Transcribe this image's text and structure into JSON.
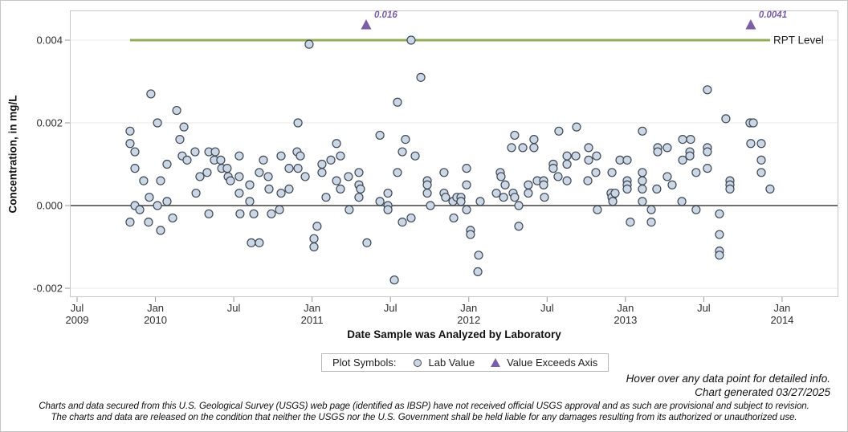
{
  "chart_data": {
    "type": "scatter",
    "xlabel": "Date Sample was Analyzed by Laboratory",
    "ylabel": "Concentration, in mg/L",
    "x_range": [
      2009.454,
      2014.36
    ],
    "y_range": [
      -0.0022,
      0.0047
    ],
    "grid": true,
    "x_ticks": [
      {
        "x": 2009.5,
        "month": "Jul",
        "year": "2009"
      },
      {
        "x": 2010.0,
        "month": "Jan",
        "year": "2010"
      },
      {
        "x": 2010.5,
        "month": "Jul",
        "year": ""
      },
      {
        "x": 2011.0,
        "month": "Jan",
        "year": "2011"
      },
      {
        "x": 2011.5,
        "month": "Jul",
        "year": ""
      },
      {
        "x": 2012.0,
        "month": "Jan",
        "year": "2012"
      },
      {
        "x": 2012.5,
        "month": "Jul",
        "year": ""
      },
      {
        "x": 2013.0,
        "month": "Jan",
        "year": "2013"
      },
      {
        "x": 2013.5,
        "month": "Jul",
        "year": ""
      },
      {
        "x": 2014.0,
        "month": "Jan",
        "year": "2014"
      }
    ],
    "y_ticks": [
      {
        "v": 0.004,
        "label": "0.004"
      },
      {
        "v": 0.002,
        "label": "0.002"
      },
      {
        "v": 0.0,
        "label": "0.000"
      },
      {
        "v": -0.002,
        "label": "-0.002"
      }
    ],
    "rpt_level": {
      "value": 0.004,
      "label": "RPT Level",
      "start": 2009.838,
      "end": 2013.92
    },
    "zero_reference": 0,
    "exceed_points": [
      {
        "x": 2011.345,
        "label": "0.016"
      },
      {
        "x": 2013.8,
        "label": "0.0041"
      }
    ],
    "points": [
      [
        2009.838,
        0.0018
      ],
      [
        2009.838,
        0.0015
      ],
      [
        2009.838,
        -0.0004
      ],
      [
        2009.869,
        0.0013
      ],
      [
        2009.869,
        0.0009
      ],
      [
        2009.869,
        0.0
      ],
      [
        2009.9,
        -0.0001
      ],
      [
        2009.925,
        0.0006
      ],
      [
        2009.956,
        -0.0004
      ],
      [
        2009.961,
        0.0002
      ],
      [
        2009.971,
        0.0027
      ],
      [
        2010.013,
        0.002
      ],
      [
        2010.013,
        0.0
      ],
      [
        2010.033,
        0.0006
      ],
      [
        2010.033,
        -0.0006
      ],
      [
        2010.074,
        0.001
      ],
      [
        2010.074,
        0.0001
      ],
      [
        2010.11,
        -0.0003
      ],
      [
        2010.136,
        0.0023
      ],
      [
        2010.156,
        0.0016
      ],
      [
        2010.171,
        0.0012
      ],
      [
        2010.182,
        0.0019
      ],
      [
        2010.202,
        0.0011
      ],
      [
        2010.253,
        0.0013
      ],
      [
        2010.259,
        0.0003
      ],
      [
        2010.284,
        0.0007
      ],
      [
        2010.33,
        0.0008
      ],
      [
        2010.341,
        0.0013
      ],
      [
        2010.341,
        -0.0002
      ],
      [
        2010.376,
        0.0011
      ],
      [
        2010.382,
        0.0013
      ],
      [
        2010.417,
        0.0011
      ],
      [
        2010.423,
        0.0009
      ],
      [
        2010.458,
        0.0009
      ],
      [
        2010.464,
        0.0007
      ],
      [
        2010.479,
        0.0006
      ],
      [
        2010.535,
        0.0012
      ],
      [
        2010.535,
        0.0007
      ],
      [
        2010.535,
        0.0003
      ],
      [
        2010.54,
        -0.0002
      ],
      [
        2010.602,
        0.0005
      ],
      [
        2010.602,
        0.0001
      ],
      [
        2010.612,
        -0.0009
      ],
      [
        2010.628,
        -0.0002
      ],
      [
        2010.663,
        0.0008
      ],
      [
        2010.663,
        -0.0009
      ],
      [
        2010.689,
        0.0011
      ],
      [
        2010.72,
        0.0007
      ],
      [
        2010.725,
        0.0004
      ],
      [
        2010.74,
        -0.0002
      ],
      [
        2010.792,
        -0.0001
      ],
      [
        2010.802,
        0.0012
      ],
      [
        2010.802,
        0.0003
      ],
      [
        2010.853,
        0.0009
      ],
      [
        2010.853,
        0.0004
      ],
      [
        2010.904,
        0.0013
      ],
      [
        2010.91,
        0.002
      ],
      [
        2010.91,
        0.0009
      ],
      [
        2010.925,
        0.0012
      ],
      [
        2010.956,
        0.0007
      ],
      [
        2010.981,
        0.0039
      ],
      [
        2011.012,
        -0.0008
      ],
      [
        2011.012,
        -0.001
      ],
      [
        2011.032,
        -0.0005
      ],
      [
        2011.063,
        0.001
      ],
      [
        2011.063,
        0.0008
      ],
      [
        2011.089,
        0.0002
      ],
      [
        2011.12,
        0.0011
      ],
      [
        2011.156,
        0.0015
      ],
      [
        2011.156,
        0.0006
      ],
      [
        2011.181,
        0.0012
      ],
      [
        2011.181,
        0.0004
      ],
      [
        2011.232,
        0.0007
      ],
      [
        2011.237,
        -0.0001
      ],
      [
        2011.299,
        0.0008
      ],
      [
        2011.299,
        0.0005
      ],
      [
        2011.299,
        0.0002
      ],
      [
        2011.309,
        0.0004
      ],
      [
        2011.35,
        -0.0009
      ],
      [
        2011.433,
        0.0017
      ],
      [
        2011.433,
        0.0001
      ],
      [
        2011.484,
        0.0003
      ],
      [
        2011.484,
        0.0
      ],
      [
        2011.484,
        -0.0001
      ],
      [
        2011.525,
        -0.0018
      ],
      [
        2011.545,
        0.0025
      ],
      [
        2011.545,
        0.0008
      ],
      [
        2011.576,
        0.0013
      ],
      [
        2011.576,
        -0.0004
      ],
      [
        2011.596,
        0.0016
      ],
      [
        2011.632,
        0.004
      ],
      [
        2011.632,
        -0.0003
      ],
      [
        2011.658,
        0.0012
      ],
      [
        2011.694,
        0.0031
      ],
      [
        2011.735,
        0.0006
      ],
      [
        2011.735,
        0.0005
      ],
      [
        2011.735,
        0.0003
      ],
      [
        2011.755,
        0.0
      ],
      [
        2011.842,
        0.0008
      ],
      [
        2011.842,
        0.0003
      ],
      [
        2011.852,
        0.0002
      ],
      [
        2011.899,
        0.0001
      ],
      [
        2011.904,
        -0.0003
      ],
      [
        2011.924,
        0.0002
      ],
      [
        2011.95,
        0.0002
      ],
      [
        2011.95,
        0.0001
      ],
      [
        2011.986,
        0.0009
      ],
      [
        2011.986,
        0.0005
      ],
      [
        2011.986,
        -0.0001
      ],
      [
        2012.011,
        -0.0006
      ],
      [
        2012.011,
        -0.0007
      ],
      [
        2012.058,
        -0.0016
      ],
      [
        2012.063,
        -0.0012
      ],
      [
        2012.073,
        0.0001
      ],
      [
        2012.176,
        0.0003
      ],
      [
        2012.201,
        0.0008
      ],
      [
        2012.206,
        0.0007
      ],
      [
        2012.222,
        0.0002
      ],
      [
        2012.232,
        0.0005
      ],
      [
        2012.273,
        0.0014
      ],
      [
        2012.283,
        0.0003
      ],
      [
        2012.293,
        0.0017
      ],
      [
        2012.293,
        0.0002
      ],
      [
        2012.319,
        0.0
      ],
      [
        2012.319,
        -0.0005
      ],
      [
        2012.345,
        0.0014
      ],
      [
        2012.38,
        0.0005
      ],
      [
        2012.38,
        0.0003
      ],
      [
        2012.416,
        0.0016
      ],
      [
        2012.416,
        0.0014
      ],
      [
        2012.437,
        0.0006
      ],
      [
        2012.478,
        0.0006
      ],
      [
        2012.478,
        0.0005
      ],
      [
        2012.483,
        0.0002
      ],
      [
        2012.539,
        0.001
      ],
      [
        2012.539,
        0.0009
      ],
      [
        2012.57,
        0.0007
      ],
      [
        2012.575,
        0.0018
      ],
      [
        2012.627,
        0.0012
      ],
      [
        2012.627,
        0.001
      ],
      [
        2012.627,
        0.0006
      ],
      [
        2012.683,
        0.0012
      ],
      [
        2012.688,
        0.0019
      ],
      [
        2012.76,
        0.0006
      ],
      [
        2012.765,
        0.0014
      ],
      [
        2012.765,
        0.0011
      ],
      [
        2012.811,
        0.0008
      ],
      [
        2012.816,
        0.0012
      ],
      [
        2012.821,
        -0.0001
      ],
      [
        2012.908,
        0.0003
      ],
      [
        2012.914,
        0.0008
      ],
      [
        2012.914,
        0.0002
      ],
      [
        2012.919,
        0.0001
      ],
      [
        2012.934,
        0.0003
      ],
      [
        2012.965,
        0.0011
      ],
      [
        2013.011,
        0.0011
      ],
      [
        2013.011,
        0.0006
      ],
      [
        2013.011,
        0.0005
      ],
      [
        2013.011,
        0.0004
      ],
      [
        2013.031,
        -0.0004
      ],
      [
        2013.108,
        0.0018
      ],
      [
        2013.108,
        0.0008
      ],
      [
        2013.108,
        0.0006
      ],
      [
        2013.108,
        0.0004
      ],
      [
        2013.108,
        0.0001
      ],
      [
        2013.165,
        -0.0001
      ],
      [
        2013.165,
        -0.0004
      ],
      [
        2013.2,
        0.0004
      ],
      [
        2013.206,
        0.0014
      ],
      [
        2013.206,
        0.0013
      ],
      [
        2013.267,
        0.0014
      ],
      [
        2013.267,
        0.0007
      ],
      [
        2013.298,
        0.0005
      ],
      [
        2013.36,
        0.0001
      ],
      [
        2013.365,
        0.0016
      ],
      [
        2013.365,
        0.0011
      ],
      [
        2013.411,
        0.0013
      ],
      [
        2013.411,
        0.0012
      ],
      [
        2013.416,
        0.0016
      ],
      [
        2013.451,
        0.0008
      ],
      [
        2013.451,
        -0.0001
      ],
      [
        2013.523,
        0.0028
      ],
      [
        2013.523,
        0.0014
      ],
      [
        2013.523,
        0.0013
      ],
      [
        2013.523,
        0.0009
      ],
      [
        2013.6,
        -0.0002
      ],
      [
        2013.6,
        -0.0007
      ],
      [
        2013.6,
        -0.0011
      ],
      [
        2013.6,
        -0.0012
      ],
      [
        2013.641,
        0.0021
      ],
      [
        2013.667,
        0.0006
      ],
      [
        2013.667,
        0.0005
      ],
      [
        2013.667,
        0.0004
      ],
      [
        2013.795,
        0.002
      ],
      [
        2013.8,
        0.0015
      ],
      [
        2013.816,
        0.002
      ],
      [
        2013.867,
        0.0015
      ],
      [
        2013.867,
        0.0011
      ],
      [
        2013.867,
        0.0008
      ],
      [
        2013.923,
        0.0004
      ]
    ]
  },
  "legend": {
    "title": "Plot Symbols:",
    "items": [
      {
        "symbol": "circle",
        "label": "Lab Value"
      },
      {
        "symbol": "triangle",
        "label": "Value Exceeds Axis"
      }
    ]
  },
  "notes": {
    "hover": "Hover over any data point for detailed info.",
    "generated": "Chart generated 03/27/2025"
  },
  "disclaimer": {
    "line1": "Charts and data secured from this U.S. Geological Survey (USGS) web page (identified as IBSP) have not received official USGS approval and as such are provisional and subject to revision.",
    "line2": "The charts and data are released on the condition that neither the USGS nor the U.S. Government shall be held liable for any damages resulting from its authorized or unauthorized use."
  },
  "colors": {
    "marker_fill": "#ccd7e6",
    "marker_stroke": "#3e4754",
    "rpt_green": "#94ac58",
    "exceed_purple": "#7a5ea6",
    "zero_line": "#6f6f6f",
    "grid": "#e8e8e8",
    "axis_border": "#c9c9c9",
    "tick": "#9a9a9a",
    "tick_text": "#2e2e2e"
  }
}
